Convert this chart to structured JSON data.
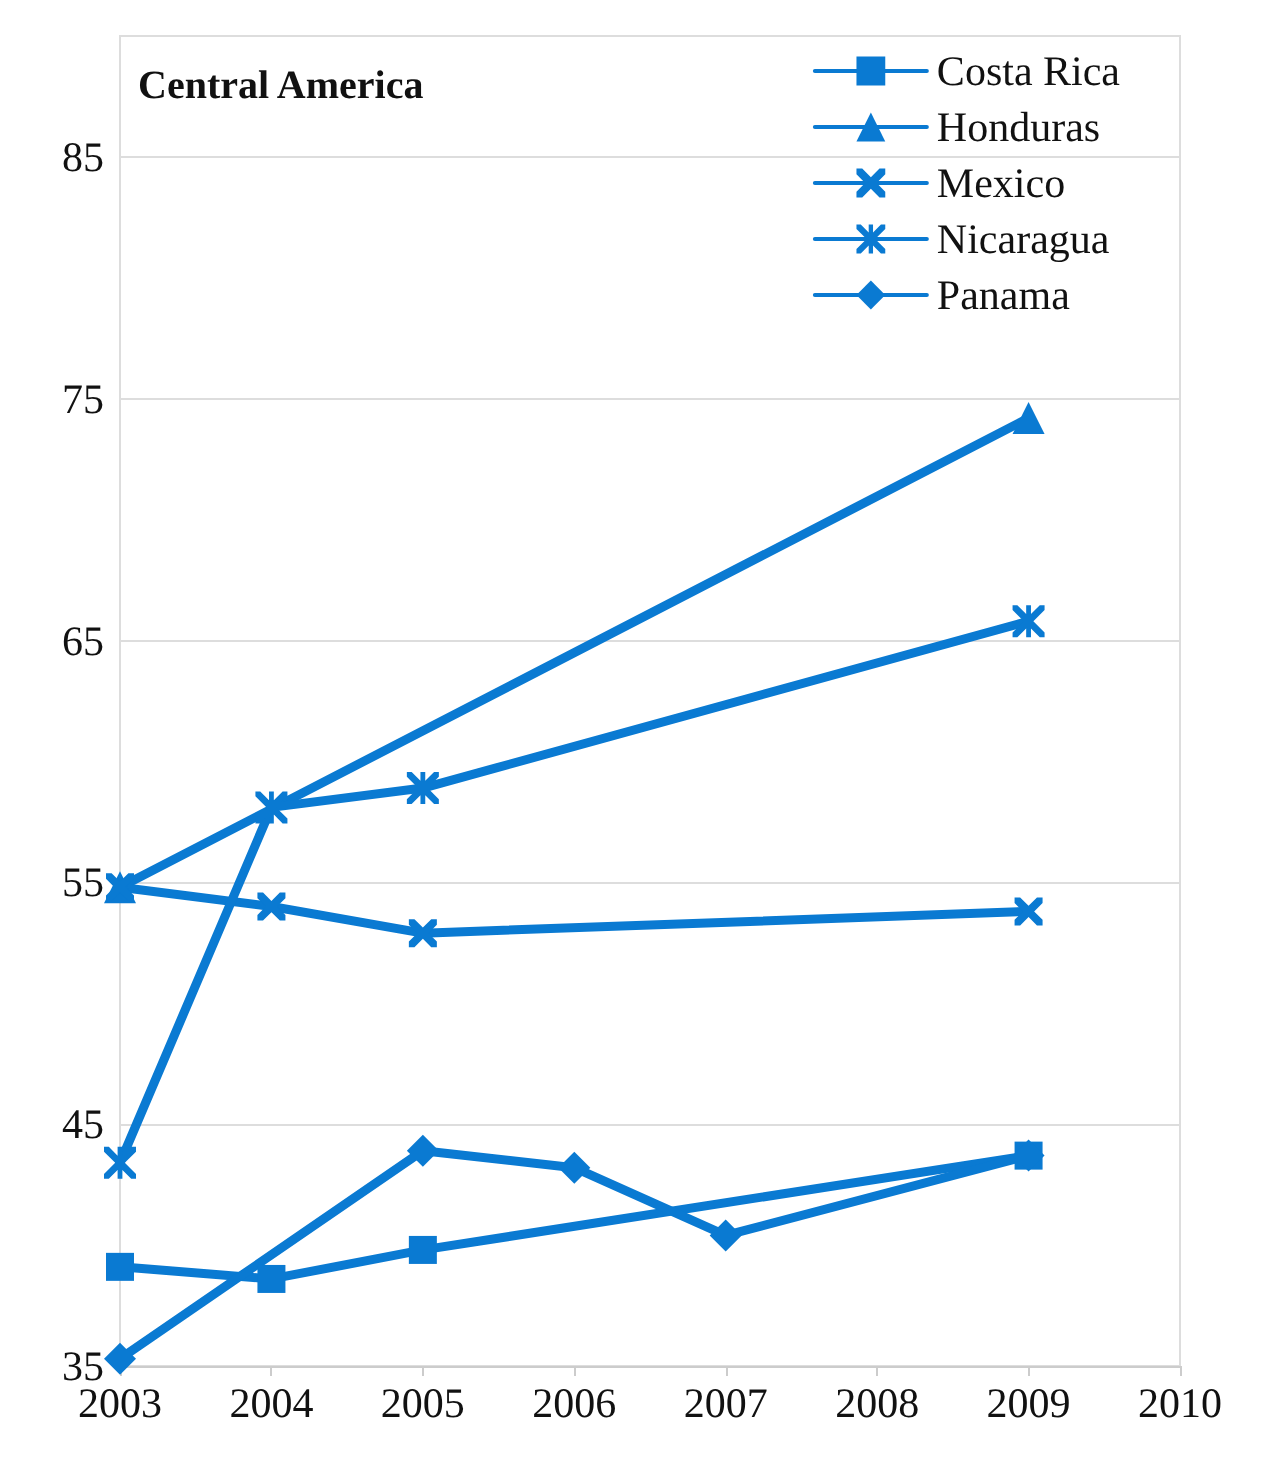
{
  "chart_data": {
    "type": "line",
    "title": "Central America",
    "xlim": [
      2003,
      2010
    ],
    "xticks": [
      2003,
      2004,
      2005,
      2006,
      2007,
      2008,
      2009,
      2010
    ],
    "ylim": [
      35,
      90
    ],
    "yticks": [
      35,
      45,
      55,
      65,
      75,
      85
    ],
    "grid": "y",
    "legend": "top right",
    "line_style": "solid",
    "series": [
      {
        "name": "Costa Rica",
        "color": "#0a7ad2",
        "marker": "square",
        "x": [
          2003,
          2004,
          2005,
          2009
        ],
        "values": [
          39.1,
          38.6,
          39.8,
          43.7
        ]
      },
      {
        "name": "Honduras",
        "color": "#0a7ad2",
        "marker": "triangle",
        "x": [
          2003,
          2009
        ],
        "values": [
          54.8,
          74.2
        ]
      },
      {
        "name": "Mexico",
        "color": "#0a7ad2",
        "marker": "cross",
        "x": [
          2003,
          2004,
          2005,
          2009
        ],
        "values": [
          54.8,
          54,
          52.9,
          53.8
        ]
      },
      {
        "name": "Nicaragua",
        "color": "#0a7ad2",
        "marker": "star",
        "x": [
          2003,
          2004,
          2005,
          2009
        ],
        "values": [
          43.4,
          58.1,
          58.9,
          65.8
        ]
      },
      {
        "name": "Panama",
        "color": "#0a7ad2",
        "marker": "diamond",
        "x": [
          2003,
          2005,
          2006,
          2007,
          2009
        ],
        "values": [
          35.3,
          43.9,
          43.2,
          40.4,
          43.7
        ]
      }
    ]
  }
}
